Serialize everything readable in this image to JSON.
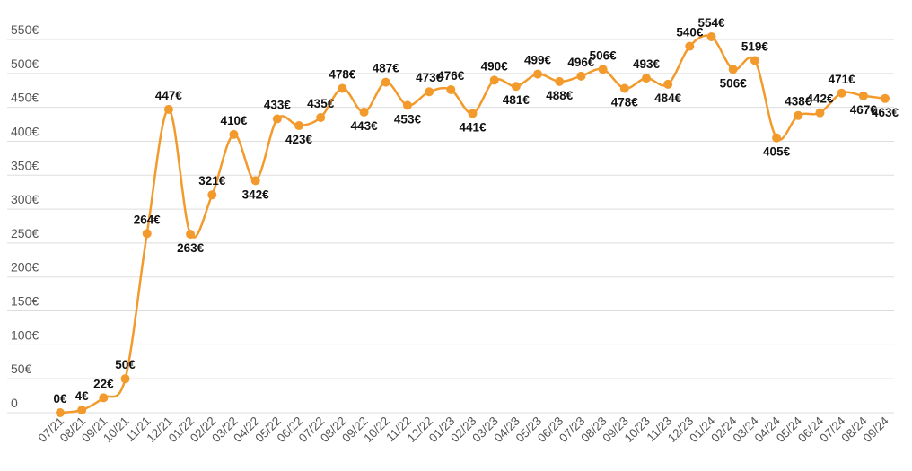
{
  "chart_data": {
    "type": "line",
    "title": "",
    "xlabel": "",
    "ylabel": "",
    "ylim": [
      0,
      550
    ],
    "yticks": [
      "0",
      "50€",
      "100€",
      "150€",
      "200€",
      "250€",
      "300€",
      "350€",
      "400€",
      "450€",
      "500€",
      "550€"
    ],
    "grid": true,
    "color": "#f39a2d",
    "categories": [
      "07/21",
      "08/21",
      "09/21",
      "10/21",
      "11/21",
      "12/21",
      "01/22",
      "02/22",
      "03/22",
      "04/22",
      "05/22",
      "06/22",
      "07/22",
      "08/22",
      "09/22",
      "10/22",
      "11/22",
      "12/22",
      "01/23",
      "02/23",
      "03/23",
      "04/23",
      "05/23",
      "06/23",
      "07/23",
      "08/23",
      "09/23",
      "10/23",
      "11/23",
      "12/23",
      "01/24",
      "02/24",
      "03/24",
      "04/24",
      "05/24",
      "06/24",
      "07/24",
      "08/24",
      "09/24"
    ],
    "values": [
      0,
      4,
      22,
      50,
      264,
      447,
      263,
      321,
      410,
      342,
      433,
      423,
      435,
      478,
      443,
      487,
      453,
      473,
      476,
      441,
      490,
      481,
      499,
      488,
      496,
      506,
      478,
      493,
      484,
      540,
      554,
      506,
      519,
      405,
      438,
      442,
      471,
      467,
      463
    ],
    "labels": [
      "0€",
      "4€",
      "22€",
      "50€",
      "264€",
      "447€",
      "263€",
      "321€",
      "410€",
      "342€",
      "433€",
      "423€",
      "435€",
      "478€",
      "443€",
      "487€",
      "453€",
      "473€",
      "476€",
      "441€",
      "490€",
      "481€",
      "499€",
      "488€",
      "496€",
      "506€",
      "478€",
      "493€",
      "484€",
      "540€",
      "554€",
      "506€",
      "519€",
      "405€",
      "438€",
      "442€",
      "471€",
      "467€",
      "463€"
    ]
  }
}
